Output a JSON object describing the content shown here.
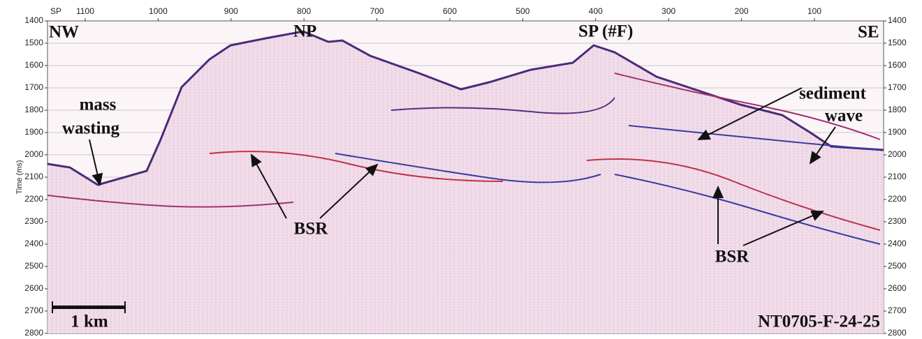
{
  "top_axis": {
    "label": "SP",
    "ticks": [
      "1100",
      "1000",
      "900",
      "800",
      "700",
      "600",
      "500",
      "400",
      "300",
      "200",
      "100"
    ]
  },
  "left_axis": {
    "title": "Time (ms)",
    "ticks": [
      "1400",
      "1500",
      "1600",
      "1700",
      "1800",
      "1900",
      "2000",
      "2100",
      "2200",
      "2300",
      "2400",
      "2500",
      "2600",
      "2700",
      "2800"
    ]
  },
  "right_axis": {
    "ticks": [
      "1400",
      "1500",
      "1600",
      "1700",
      "1800",
      "1900",
      "2000",
      "2100",
      "2200",
      "2300",
      "2400",
      "2500",
      "2600",
      "2700",
      "2800"
    ]
  },
  "annotations": {
    "nw": "NW",
    "np": "NP",
    "sp": "SP (#F)",
    "se": "SE",
    "mass_wasting": [
      "mass",
      "wasting"
    ],
    "sediment_wave": [
      "sediment",
      "wave"
    ],
    "bsr_left": "BSR",
    "bsr_right": "BSR",
    "scale": "1 km",
    "line_id": "NT0705-F-24-25"
  }
}
